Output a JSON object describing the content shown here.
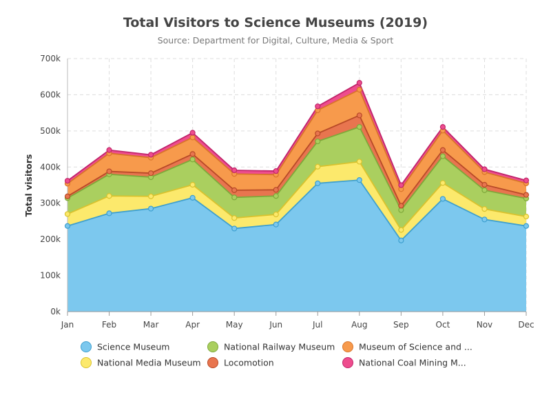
{
  "chart_data": {
    "type": "area",
    "stacked": true,
    "title": "Total Visitors to Science Museums (2019)",
    "subtitle": "Source: Department for Digital, Culture, Media & Sport",
    "xlabel": "",
    "ylabel": "Total visitors",
    "ylim": [
      0,
      700000
    ],
    "yticks": [
      0,
      100000,
      200000,
      300000,
      400000,
      500000,
      600000,
      700000
    ],
    "ytick_labels": [
      "0k",
      "100k",
      "200k",
      "300k",
      "400k",
      "500k",
      "600k",
      "700k"
    ],
    "grid": true,
    "legend_position": "bottom",
    "categories": [
      "Jan",
      "Feb",
      "Mar",
      "Apr",
      "May",
      "Jun",
      "Jul",
      "Aug",
      "Sep",
      "Oct",
      "Nov",
      "Dec"
    ],
    "series": [
      {
        "name": "Science Museum",
        "legend_label": "Science Museum",
        "color": "#7cc8ee",
        "line": "#3d9fcf",
        "values": [
          237000,
          272000,
          285000,
          315000,
          230000,
          241000,
          355000,
          364000,
          197000,
          312000,
          255000,
          237000
        ]
      },
      {
        "name": "National Media Museum",
        "legend_label": "National Media Museum",
        "color": "#fce96c",
        "line": "#d9c22e",
        "values": [
          33000,
          48000,
          34000,
          36000,
          29000,
          28000,
          46000,
          51000,
          29000,
          44000,
          29000,
          26000
        ]
      },
      {
        "name": "National Railway Museum",
        "legend_label": "National Railway Museum",
        "color": "#aacf5f",
        "line": "#7ea83a",
        "values": [
          44000,
          60000,
          53000,
          70000,
          57000,
          51000,
          70000,
          96000,
          55000,
          74000,
          52000,
          50000
        ]
      },
      {
        "name": "Locomotion",
        "legend_label": "Locomotion",
        "color": "#e8754f",
        "line": "#b84a27",
        "values": [
          5000,
          8000,
          11000,
          15000,
          20000,
          17000,
          22000,
          32000,
          12000,
          17000,
          15000,
          10000
        ]
      },
      {
        "name": "Museum of Science and ...",
        "legend_label": "Museum of Science and ...",
        "color": "#f79a4c",
        "line": "#d8742a",
        "values": [
          35000,
          50000,
          43000,
          46000,
          45000,
          42000,
          64000,
          71000,
          46000,
          54000,
          35000,
          32000
        ]
      },
      {
        "name": "National Coal Mining M...",
        "legend_label": "National Coal Mining M...",
        "color": "#ee4d8e",
        "line": "#c0256a",
        "values": [
          8000,
          9000,
          8000,
          13000,
          10000,
          10000,
          11000,
          19000,
          11000,
          10000,
          8000,
          8000
        ]
      }
    ],
    "legend_order": [
      0,
      2,
      4,
      1,
      3,
      5
    ]
  }
}
